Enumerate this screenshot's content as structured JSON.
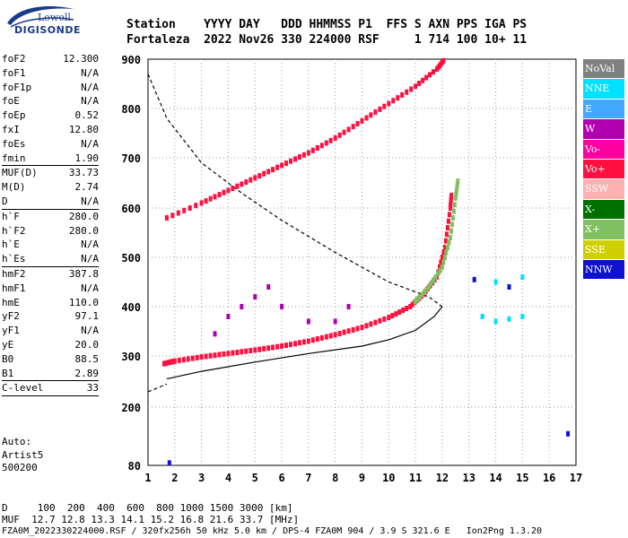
{
  "logo": {
    "line1": "Lowell",
    "line2": "DIGISONDE"
  },
  "header": {
    "line1": "Station    YYYY DAY   DDD HHMMSS P1  FFS S AXN PPS IGA PS",
    "line2": "Fortaleza  2022 Nov26 330 224000 RSF     1 714 100 10+ 11"
  },
  "params": [
    {
      "label": "foF2",
      "value": "12.300"
    },
    {
      "label": "foF1",
      "value": "N/A"
    },
    {
      "label": "foF1p",
      "value": "N/A"
    },
    {
      "label": "foE",
      "value": "N/A"
    },
    {
      "label": "foEp",
      "value": "0.52"
    },
    {
      "label": "fxI",
      "value": "12.80"
    },
    {
      "label": "foEs",
      "value": "N/A"
    },
    {
      "label": "fmin",
      "value": "1.90"
    },
    {
      "sep": true
    },
    {
      "label": "MUF(D)",
      "value": "33.73"
    },
    {
      "label": "M(D)",
      "value": "2.74"
    },
    {
      "label": "D",
      "value": "N/A"
    },
    {
      "sep": true
    },
    {
      "label": "h`F",
      "value": "280.0"
    },
    {
      "label": "h`F2",
      "value": "280.0"
    },
    {
      "label": "h`E",
      "value": "N/A"
    },
    {
      "label": "h`Es",
      "value": "N/A"
    },
    {
      "sep": true
    },
    {
      "label": "hmF2",
      "value": "387.8"
    },
    {
      "label": "hmF1",
      "value": "N/A"
    },
    {
      "label": "hmE",
      "value": "110.0"
    },
    {
      "label": "yF2",
      "value": "97.1"
    },
    {
      "label": "yF1",
      "value": "N/A"
    },
    {
      "label": "yE",
      "value": "20.0"
    },
    {
      "label": "B0",
      "value": "88.5"
    },
    {
      "label": "B1",
      "value": "2.89"
    },
    {
      "sep": true
    },
    {
      "label": "C-level",
      "value": "33"
    },
    {
      "sep": true
    }
  ],
  "auto": {
    "line1": "Auto:",
    "line2": "Artist5",
    "line3": "500200"
  },
  "legend": [
    {
      "label": "NoVal",
      "color": "#808080"
    },
    {
      "label": "NNE",
      "color": "#00e0ff"
    },
    {
      "label": "E",
      "color": "#40a8ff"
    },
    {
      "label": "W",
      "color": "#b000b0"
    },
    {
      "label": "Vo-",
      "color": "#ff00a0"
    },
    {
      "label": "Vo+",
      "color": "#ff1040"
    },
    {
      "label": "SSW",
      "color": "#ffb0b0"
    },
    {
      "label": "X-",
      "color": "#007000"
    },
    {
      "label": "X+",
      "color": "#80c060"
    },
    {
      "label": "SSE",
      "color": "#d0d000"
    },
    {
      "label": "NNW",
      "color": "#1010d0"
    }
  ],
  "footer": {
    "line1": "D     100  200  400  600  800 1000 1500 3000 [km]",
    "line2": "MUF  12.7 12.8 13.3 14.1 15.2 16.8 21.6 33.7 [MHz]",
    "line3": "FZA0M_2022330224000.RSF / 320fx256h 50 kHz 5.0 km / DPS-4 FZA0M 904 / 3.9 S 321.6 E   Ion2Png 1.3.20"
  },
  "chart_data": {
    "type": "scatter",
    "xlabel": "",
    "ylabel": "",
    "x_ticks": [
      "1",
      "2",
      "3",
      "4",
      "5",
      "6",
      "7",
      "8",
      "9",
      "10",
      "11",
      "12",
      "13",
      "14",
      "15",
      "16",
      "17"
    ],
    "y_ticks": [
      "80",
      "200",
      "300",
      "400",
      "500",
      "600",
      "700",
      "800",
      "900"
    ],
    "xlim": [
      1,
      17
    ],
    "ylim": [
      80,
      900
    ],
    "y_scale": "non-linear (virtual height)",
    "series": [
      {
        "name": "Vo+",
        "color": "#ff1040",
        "trace": [
          [
            1.6,
            285
          ],
          [
            2,
            290
          ],
          [
            3,
            298
          ],
          [
            4,
            305
          ],
          [
            5,
            312
          ],
          [
            6,
            320
          ],
          [
            7,
            330
          ],
          [
            8,
            343
          ],
          [
            9,
            358
          ],
          [
            10,
            378
          ],
          [
            10.8,
            400
          ],
          [
            11.3,
            425
          ],
          [
            11.8,
            460
          ],
          [
            12.1,
            520
          ],
          [
            12.3,
            600
          ],
          [
            12.35,
            630
          ]
        ]
      },
      {
        "name": "Vo+",
        "color": "#ff1040",
        "trace": [
          [
            1.7,
            580
          ],
          [
            3,
            610
          ],
          [
            4,
            635
          ],
          [
            5,
            660
          ],
          [
            6,
            685
          ],
          [
            7,
            710
          ],
          [
            8,
            740
          ],
          [
            9,
            775
          ],
          [
            10,
            810
          ],
          [
            11,
            845
          ],
          [
            11.8,
            880
          ],
          [
            12.1,
            900
          ]
        ]
      },
      {
        "name": "X+",
        "color": "#80c060",
        "trace": [
          [
            11,
            410
          ],
          [
            11.5,
            440
          ],
          [
            12,
            480
          ],
          [
            12.3,
            540
          ],
          [
            12.5,
            620
          ],
          [
            12.6,
            660
          ]
        ]
      },
      {
        "name": "W",
        "color": "#b000b0",
        "points": [
          [
            3.5,
            345
          ],
          [
            4,
            380
          ],
          [
            4.5,
            400
          ],
          [
            5,
            420
          ],
          [
            5.5,
            440
          ],
          [
            6,
            400
          ],
          [
            7,
            370
          ],
          [
            8,
            370
          ],
          [
            8.5,
            400
          ]
        ]
      },
      {
        "name": "NNE",
        "color": "#00e0ff",
        "points": [
          [
            13.5,
            380
          ],
          [
            14,
            370
          ],
          [
            14.5,
            375
          ],
          [
            15,
            380
          ],
          [
            14,
            450
          ],
          [
            14.5,
            440
          ],
          [
            15,
            460
          ]
        ]
      },
      {
        "name": "NNW",
        "color": "#1010d0",
        "points": [
          [
            1.8,
            85
          ],
          [
            13.2,
            455
          ],
          [
            14.5,
            440
          ],
          [
            16.7,
            145
          ]
        ]
      }
    ],
    "profile_lines": [
      {
        "name": "profile",
        "style": "solid",
        "trace": [
          [
            1.7,
            255
          ],
          [
            3,
            270
          ],
          [
            5,
            288
          ],
          [
            7,
            305
          ],
          [
            9,
            320
          ],
          [
            10,
            333
          ],
          [
            11,
            352
          ],
          [
            11.7,
            380
          ],
          [
            12,
            400
          ]
        ]
      },
      {
        "name": "profile",
        "style": "dashed",
        "trace": [
          [
            1.0,
            870
          ],
          [
            1.7,
            780
          ],
          [
            3,
            690
          ],
          [
            4.5,
            630
          ],
          [
            6,
            575
          ],
          [
            8,
            510
          ],
          [
            10,
            450
          ],
          [
            11.5,
            420
          ],
          [
            12,
            400
          ]
        ]
      },
      {
        "name": "profile",
        "style": "dashed",
        "trace": [
          [
            1.0,
            230
          ],
          [
            1.7,
            245
          ]
        ]
      }
    ]
  }
}
